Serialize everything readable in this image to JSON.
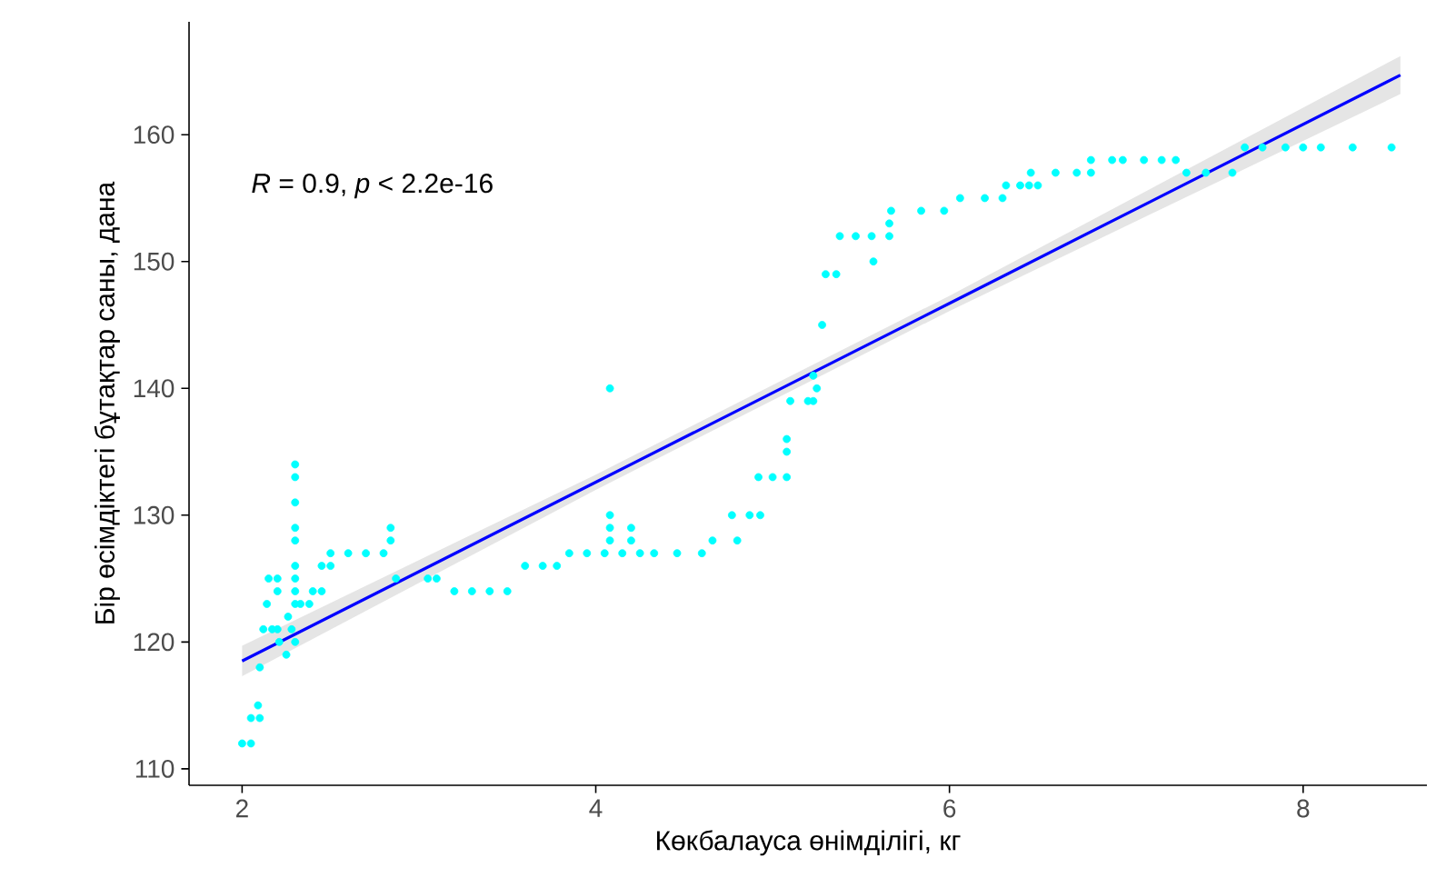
{
  "chart_data": {
    "type": "scatter",
    "xlabel": "Көкбалауса өнімділігі, кг",
    "ylabel": "Бір өсімдіктегі бұтақтар саны, дана",
    "annotations": [
      "*R* = 0.9, *p* < 2.2e-16"
    ],
    "xlim": [
      1.7,
      8.7
    ],
    "ylim": [
      108.7,
      168.9
    ],
    "xticks": [
      2,
      4,
      6,
      8
    ],
    "yticks": [
      110,
      120,
      130,
      140,
      150,
      160
    ],
    "grid": false,
    "series": [
      {
        "marker": "circle",
        "color": "#00ffff",
        "x": [
          2.0,
          2.05,
          2.05,
          2.1,
          2.09,
          2.1,
          2.12,
          2.17,
          2.2,
          2.28,
          2.14,
          2.15,
          2.2,
          2.2,
          2.21,
          2.25,
          2.26,
          2.3,
          2.3,
          2.3,
          2.3,
          2.3,
          2.3,
          2.3,
          2.3,
          2.3,
          2.3,
          2.33,
          2.38,
          2.4,
          2.45,
          2.45,
          2.5,
          2.5,
          2.6,
          2.7,
          2.8,
          2.84,
          2.84,
          2.87,
          3.05,
          3.1,
          3.2,
          3.3,
          3.4,
          3.5,
          3.6,
          3.7,
          3.78,
          3.85,
          3.95,
          4.05,
          4.15,
          4.25,
          4.33,
          4.08,
          4.08,
          4.08,
          4.2,
          4.2,
          4.08,
          4.46,
          4.6,
          4.66,
          4.8,
          4.77,
          4.87,
          4.93,
          4.92,
          5.0,
          5.08,
          5.08,
          5.08,
          5.1,
          5.2,
          5.23,
          5.25,
          5.23,
          5.28,
          5.3,
          5.36,
          5.38,
          5.47,
          5.56,
          5.66,
          5.57,
          5.66,
          5.67,
          5.84,
          5.97,
          6.06,
          6.2,
          6.3,
          6.32,
          6.45,
          6.4,
          6.5,
          6.46,
          6.6,
          6.72,
          6.8,
          6.8,
          6.92,
          6.98,
          7.1,
          7.2,
          7.28,
          7.34,
          7.45,
          7.6,
          7.67,
          7.77,
          7.9,
          8.0,
          8.1,
          8.28,
          8.5
        ],
        "values": [
          112,
          112,
          114,
          114,
          115,
          118,
          121,
          121,
          121,
          121,
          123,
          125,
          125,
          124,
          120,
          119,
          122,
          134,
          133,
          131,
          129,
          128,
          126,
          125,
          124,
          123,
          120,
          123,
          123,
          124,
          124,
          126,
          126,
          127,
          127,
          127,
          127,
          128,
          129,
          125,
          125,
          125,
          124,
          124,
          124,
          124,
          126,
          126,
          126,
          127,
          127,
          127,
          127,
          127,
          127,
          128,
          129,
          130,
          128,
          129,
          140,
          127,
          127,
          128,
          128,
          130,
          130,
          130,
          133,
          133,
          133,
          135,
          136,
          139,
          139,
          139,
          140,
          141,
          145,
          149,
          149,
          152,
          152,
          152,
          152,
          150,
          153,
          154,
          154,
          154,
          155,
          155,
          155,
          156,
          156,
          156,
          156,
          157,
          157,
          157,
          157,
          158,
          158,
          158,
          158,
          158,
          158,
          157,
          157,
          157,
          159,
          159,
          159,
          159,
          159,
          159,
          159
        ]
      },
      {
        "type": "line",
        "marker": "none",
        "color": "#0000ff",
        "x": [
          2.0,
          4.0,
          6.0,
          8.55
        ],
        "values": [
          118.5,
          132.6,
          146.7,
          164.7
        ],
        "lower": [
          117.3,
          132.0,
          146.1,
          163.2
        ],
        "upper": [
          119.7,
          133.2,
          147.3,
          166.2
        ]
      }
    ]
  }
}
